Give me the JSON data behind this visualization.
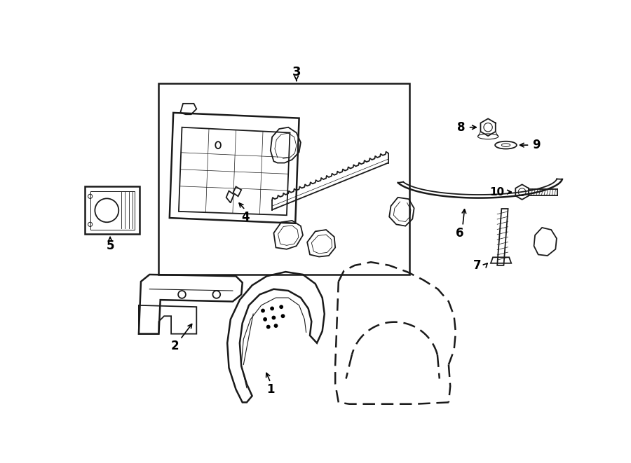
{
  "bg_color": "#ffffff",
  "line_color": "#1a1a1a",
  "lw": 1.3,
  "lw2": 1.8,
  "fig_width": 9.0,
  "fig_height": 6.61
}
